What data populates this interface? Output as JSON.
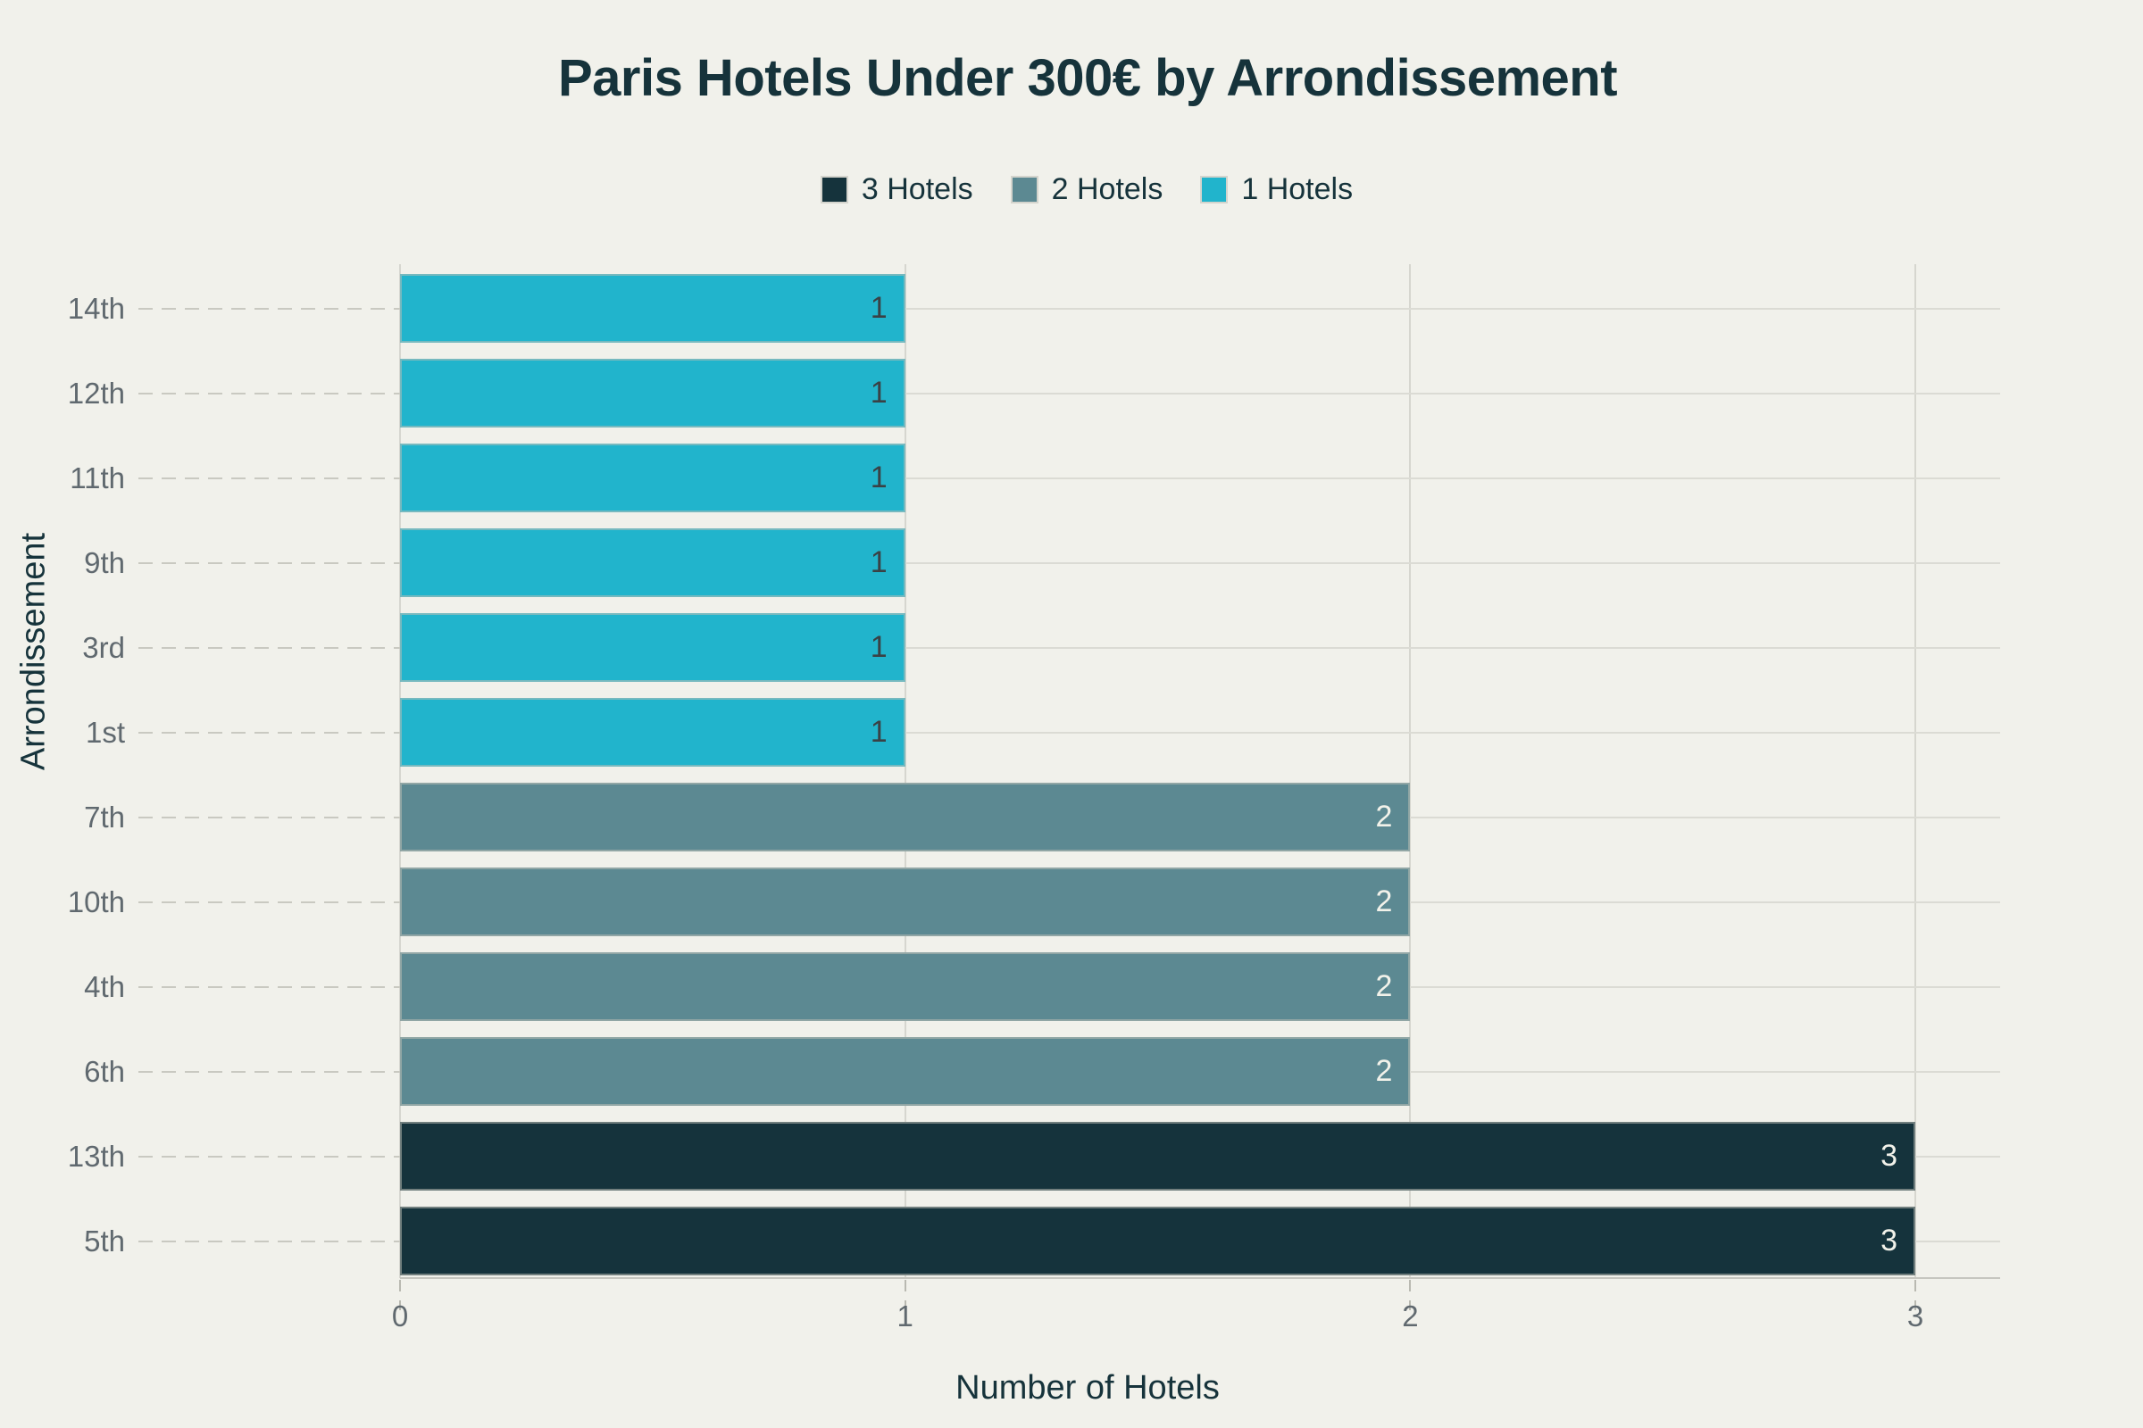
{
  "chart_data": {
    "type": "bar",
    "orientation": "horizontal",
    "title": "Paris Hotels Under 300€ by Arrondissement",
    "xlabel": "Number of Hotels",
    "ylabel": "Arrondissement",
    "xlim": [
      0,
      3
    ],
    "xticks": [
      0,
      1,
      2,
      3
    ],
    "grid": true,
    "legend_position": "top",
    "legend": [
      {
        "label": "3 Hotels",
        "color": "#15333C"
      },
      {
        "label": "2 Hotels",
        "color": "#5C8992"
      },
      {
        "label": "1 Hotels",
        "color": "#21B4CC"
      }
    ],
    "categories": [
      "14th",
      "12th",
      "11th",
      "9th",
      "3rd",
      "1st",
      "7th",
      "10th",
      "4th",
      "6th",
      "13th",
      "5th"
    ],
    "values": [
      1,
      1,
      1,
      1,
      1,
      1,
      2,
      2,
      2,
      2,
      3,
      3
    ],
    "value_colors": {
      "1": "#21B4CC",
      "2": "#5C8992",
      "3": "#15333C"
    },
    "value_label_colors": {
      "1": "#3A4145",
      "2": "#F2F2EA",
      "3": "#F2F2EA"
    }
  },
  "colors": {
    "background": "#F1F1EB",
    "title_text": "#16333B",
    "tick_text": "#60696F",
    "gridline": "#DBDBD4",
    "axis_line": "#C6C6BF"
  }
}
